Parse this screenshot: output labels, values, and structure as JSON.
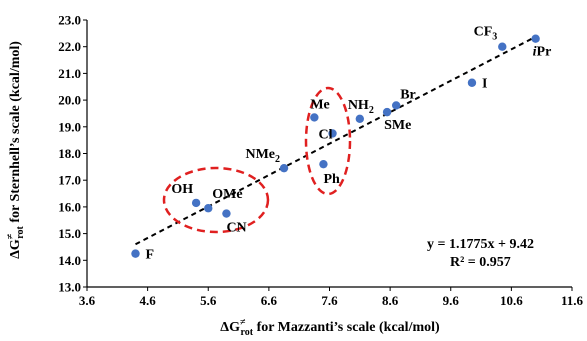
{
  "chart_data": {
    "type": "scatter",
    "xlim": [
      3.6,
      11.6
    ],
    "ylim": [
      13.0,
      23.0
    ],
    "x_ticks": [
      "3.6",
      "4.6",
      "5.6",
      "6.6",
      "7.6",
      "8.6",
      "9.6",
      "10.6",
      "11.6"
    ],
    "y_ticks": [
      "13.0",
      "14.0",
      "15.0",
      "16.0",
      "17.0",
      "18.0",
      "19.0",
      "20.0",
      "21.0",
      "22.0",
      "23.0"
    ],
    "xlabel": {
      "base": "ΔG",
      "sup": "≠",
      "sub": "rot",
      "rest": " for Mazzanti’s scale (kcal/mol)"
    },
    "ylabel": {
      "base": "ΔG",
      "sup": "≠",
      "sub": "rot",
      "rest": " for Sternhell’s scale (kcal/mol)"
    },
    "grid": false,
    "marker_color": "#4472C4",
    "points": [
      {
        "label": "F",
        "x": 4.4,
        "y": 14.25
      },
      {
        "label": "OH",
        "x": 5.4,
        "y": 16.15
      },
      {
        "label": "OMe",
        "x": 5.6,
        "y": 15.95
      },
      {
        "label": "CN",
        "x": 5.9,
        "y": 15.75
      },
      {
        "label": "NMe",
        "label_sub": "2",
        "x": 6.85,
        "y": 17.45
      },
      {
        "label": "Me",
        "x": 7.35,
        "y": 19.35
      },
      {
        "label": "Ph",
        "x": 7.5,
        "y": 17.6
      },
      {
        "label": "Cl",
        "x": 7.65,
        "y": 18.75
      },
      {
        "label": "NH",
        "label_sub": "2",
        "x": 8.1,
        "y": 19.3
      },
      {
        "label": "SMe",
        "x": 8.55,
        "y": 19.55
      },
      {
        "label": "Br",
        "x": 8.7,
        "y": 19.8
      },
      {
        "label": "I",
        "x": 9.95,
        "y": 20.65
      },
      {
        "label": "CF",
        "label_sub": "3",
        "x": 10.45,
        "y": 22.0
      },
      {
        "label": "iPr",
        "x": 11.0,
        "y": 22.3
      }
    ],
    "trendline": {
      "slope": 1.1775,
      "intercept": 9.42,
      "x_range": [
        4.4,
        11.0
      ],
      "color": "#000000",
      "style": "dashed"
    },
    "equation": "y = 1.1775x + 9.42",
    "r_squared": "R² = 0.957",
    "highlight_color": "#E02020"
  }
}
